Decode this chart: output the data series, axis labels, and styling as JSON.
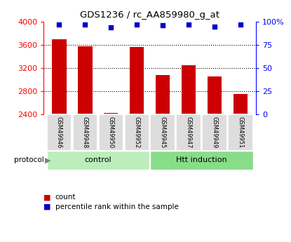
{
  "title": "GDS1236 / rc_AA859980_g_at",
  "samples": [
    "GSM49946",
    "GSM49948",
    "GSM49950",
    "GSM49952",
    "GSM49945",
    "GSM49947",
    "GSM49949",
    "GSM49951"
  ],
  "counts": [
    3700,
    3580,
    2415,
    3565,
    3080,
    3250,
    3055,
    2750
  ],
  "percentiles": [
    97,
    97,
    94,
    97,
    96,
    97,
    95,
    97
  ],
  "ylim_left": [
    2400,
    4000
  ],
  "ylim_right": [
    0,
    100
  ],
  "yticks_left": [
    2400,
    2800,
    3200,
    3600,
    4000
  ],
  "yticks_right": [
    0,
    25,
    50,
    75,
    100
  ],
  "yticklabels_right": [
    "0",
    "25",
    "50",
    "75",
    "100%"
  ],
  "bar_color": "#cc0000",
  "marker_color": "#0000cc",
  "groups": [
    {
      "label": "control",
      "indices": [
        0,
        1,
        2,
        3
      ],
      "color": "#bbeebb"
    },
    {
      "label": "Htt induction",
      "indices": [
        4,
        5,
        6,
        7
      ],
      "color": "#88dd88"
    }
  ],
  "protocol_label": "protocol",
  "legend_count": "count",
  "legend_pct": "percentile rank within the sample",
  "background_color": "#ffffff",
  "sample_box_color": "#dddddd",
  "gridline_ticks": [
    3600,
    3200,
    2800
  ]
}
